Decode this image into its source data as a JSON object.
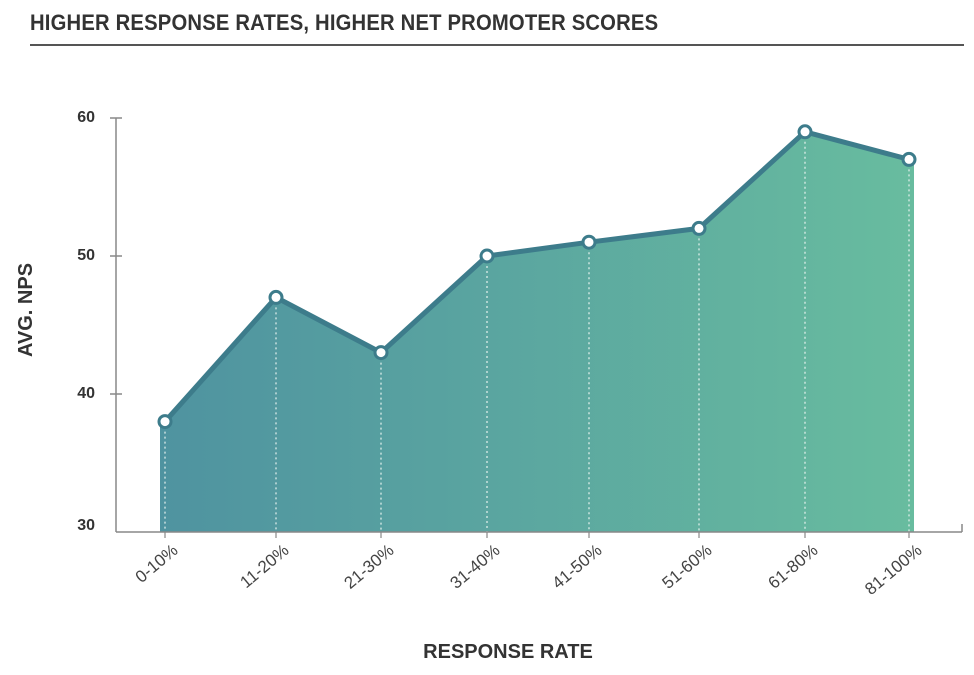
{
  "chart_data": {
    "type": "area",
    "title": "HIGHER RESPONSE RATES, HIGHER NET PROMOTER SCORES",
    "xlabel": "RESPONSE RATE",
    "ylabel": "AVG. NPS",
    "categories": [
      "0-10%",
      "11-20%",
      "21-30%",
      "31-40%",
      "41-50%",
      "51-60%",
      "61-80%",
      "81-100%"
    ],
    "values": [
      38,
      47,
      43,
      50,
      51,
      52,
      59,
      57
    ],
    "ylim": [
      30,
      60
    ],
    "yticks": [
      30,
      40,
      50,
      60
    ],
    "grid": false,
    "legend": "none",
    "colors": {
      "fill_start": "#4f93a0",
      "fill_end": "#68bc9f",
      "line": "#3d7c8b",
      "marker_fill": "#ffffff",
      "axis": "#888888",
      "guide": "#e6f2ee"
    }
  }
}
